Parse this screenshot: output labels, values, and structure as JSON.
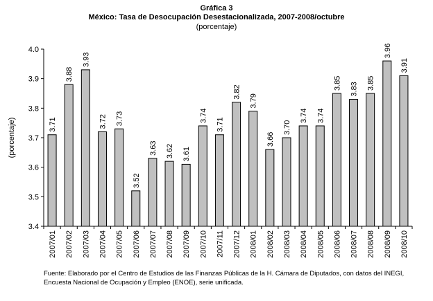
{
  "chart_data": {
    "type": "bar",
    "title_line1": "Gráfica 3",
    "title_line2": "México: Tasa de Desocupación Desestacionalizada, 2007-2008/octubre",
    "subtitle": "(porcentaje)",
    "ylabel": "(porcentaje)",
    "xlabel": "",
    "categories": [
      "2007/01",
      "2007/02",
      "2007/03",
      "2007/04",
      "2007/05",
      "2007/06",
      "2007/07",
      "2007/08",
      "2007/09",
      "2007/10",
      "2007/11",
      "2007/12",
      "2008/01",
      "2008/02",
      "2008/03",
      "2008/04",
      "2008/05",
      "2008/06",
      "2008/07",
      "2008/08",
      "2008/09",
      "2008/10"
    ],
    "values": [
      3.71,
      3.88,
      3.93,
      3.72,
      3.73,
      3.52,
      3.63,
      3.62,
      3.61,
      3.74,
      3.71,
      3.82,
      3.79,
      3.66,
      3.7,
      3.74,
      3.74,
      3.85,
      3.83,
      3.85,
      3.96,
      3.91
    ],
    "value_labels": [
      "3.71",
      "3.88",
      "3.93",
      "3.72",
      "3.73",
      "3.52",
      "3.63",
      "3.62",
      "3.61",
      "3.74",
      "3.71",
      "3.82",
      "3.79",
      "3.66",
      "3.70",
      "3.74",
      "3.74",
      "3.85",
      "3.83",
      "3.85",
      "3.96",
      "3.91"
    ],
    "yticks": [
      "3.4",
      "3.5",
      "3.6",
      "3.7",
      "3.8",
      "3.9",
      "4.0"
    ],
    "ylim": [
      3.4,
      4.0
    ],
    "grid": false,
    "bar_color": "#c0c0c0",
    "bar_edge_color": "#000000"
  },
  "source": "Fuente: Elaborado por el Centro de Estudios de las Finanzas Públicas  de la H. Cámara de Diputados, con datos del INEGI, Encuesta Nacional de Ocupación y Empleo (ENOE), serie unificada."
}
